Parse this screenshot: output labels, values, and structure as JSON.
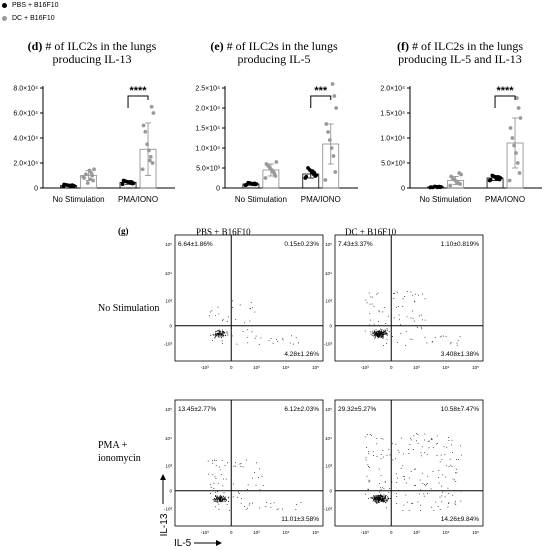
{
  "legend": [
    {
      "label": "PBS + B16F10",
      "color": "#000000"
    },
    {
      "label": "DC + B16F10",
      "color": "#9a9a9a"
    }
  ],
  "colors": {
    "pbs": "#000000",
    "dc": "#9a9a9a",
    "bar_edge": "#8a8a8a"
  },
  "chart_data": [
    {
      "type": "bar",
      "panel": "(d)",
      "title_line1": "# of ILC2s in the lungs",
      "title_line2": "producing IL-13",
      "categories": [
        "No Stimulation",
        "PMA/IONO"
      ],
      "series": [
        {
          "name": "PBS + B16F10",
          "values": [
            2000,
            4500
          ],
          "errors": [
            500,
            1500
          ]
        },
        {
          "name": "DC + B16F10",
          "values": [
            10000,
            31000
          ],
          "errors": [
            4000,
            21000
          ]
        }
      ],
      "points": [
        [
          [
            1200,
            1500,
            1800,
            2000,
            2200,
            2500,
            2800,
            1700,
            2300,
            1600
          ],
          [
            9000,
            6000,
            12000,
            14000,
            4000,
            11000,
            8000,
            15000,
            10000,
            7000
          ]
        ],
        [
          [
            3000,
            3500,
            4000,
            4500,
            5000,
            5500,
            6000,
            3800,
            4800,
            4200
          ],
          [
            15000,
            20000,
            25000,
            30000,
            35000,
            45000,
            50000,
            60000,
            65000,
            22000
          ]
        ]
      ],
      "yticks": [
        "0",
        "2.0×10⁴",
        "4.0×10⁴",
        "6.0×10⁴",
        "8.0×10⁴"
      ],
      "ylim": [
        0,
        80000
      ],
      "significance": "****"
    },
    {
      "type": "bar",
      "panel": "(e)",
      "title_line1": "# of ILC2s in the lungs",
      "title_line2": "producing IL-5",
      "categories": [
        "No Stimulation",
        "PMA/IONO"
      ],
      "series": [
        {
          "name": "PBS + B16F10",
          "values": [
            1000,
            3500
          ],
          "errors": [
            300,
            1000
          ]
        },
        {
          "name": "DC + B16F10",
          "values": [
            4500,
            11000
          ],
          "errors": [
            1500,
            5000
          ]
        }
      ],
      "points": [
        [
          [
            700,
            900,
            1000,
            1100,
            1200,
            1300,
            800,
            1000,
            1150,
            950
          ],
          [
            2500,
            3000,
            4000,
            4500,
            5000,
            5500,
            6000,
            6500,
            3500,
            4200
          ]
        ],
        [
          [
            2500,
            3000,
            3500,
            4000,
            4500,
            5000,
            2800,
            3200,
            3800,
            4200
          ],
          [
            2000,
            4000,
            8000,
            10000,
            12000,
            14000,
            16000,
            20000,
            23000,
            26000
          ]
        ]
      ],
      "yticks": [
        "0",
        "5.0×10³",
        "1.0×10⁴",
        "1.5×10⁴",
        "2.0×10⁴",
        "2.5×10⁴"
      ],
      "ylim": [
        0,
        25000
      ],
      "significance": "***"
    },
    {
      "type": "bar",
      "panel": "(f)",
      "title_line1": "# of ILC2s in the lungs",
      "title_line2": "producing IL-5 and IL-13",
      "categories": [
        "No Stimulation",
        "PMA/IONO"
      ],
      "series": [
        {
          "name": "PBS + B16F10",
          "values": [
            200,
            2000
          ],
          "errors": [
            100,
            500
          ]
        },
        {
          "name": "DC + B16F10",
          "values": [
            1500,
            9000
          ],
          "errors": [
            800,
            5000
          ]
        }
      ],
      "points": [
        [
          [
            100,
            150,
            200,
            250,
            300,
            120,
            180,
            220,
            260,
            140
          ],
          [
            500,
            800,
            1000,
            1300,
            1600,
            1900,
            2300,
            2700,
            3000,
            1100
          ]
        ],
        [
          [
            1500,
            1700,
            1900,
            2100,
            2300,
            2500,
            1600,
            2000,
            2200,
            1800
          ],
          [
            1500,
            3000,
            5000,
            7000,
            8500,
            10000,
            12000,
            14000,
            16000,
            18000
          ]
        ]
      ],
      "yticks": [
        "0",
        "5.0×10³",
        "1.0×10⁴",
        "1.5×10⁴",
        "2.0×10⁴"
      ],
      "ylim": [
        0,
        20000
      ],
      "significance": "****"
    }
  ],
  "flow": {
    "panel": "(g)",
    "columns": [
      "PBS + B16F10",
      "DC + B16F10"
    ],
    "rows": [
      "No Stimulation",
      "PMA + ionomycin"
    ],
    "ylabel": "IL-13",
    "xlabel": "IL-5",
    "axis_ticks": [
      "-10³",
      "0",
      "10³",
      "10⁴",
      "10⁵"
    ],
    "plots": [
      {
        "ul": "6.64±1.86%",
        "ur": "0.15±0.23%",
        "lr": "4.28±1.26%",
        "density": 0.35,
        "spread": 0.15
      },
      {
        "ul": "7.43±3.37%",
        "ur": "1.10±0.819%",
        "lr": "3.408±1.38%",
        "density": 0.8,
        "spread": 0.35
      },
      {
        "ul": "13.45±2.77%",
        "ur": "6.12±2.03%",
        "lr": "11.01±3.58%",
        "density": 0.45,
        "spread": 0.3
      },
      {
        "ul": "29.32±5.27%",
        "ur": "10.58±7.47%",
        "lr": "14.26±9.84%",
        "density": 1.0,
        "spread": 0.9
      }
    ]
  }
}
